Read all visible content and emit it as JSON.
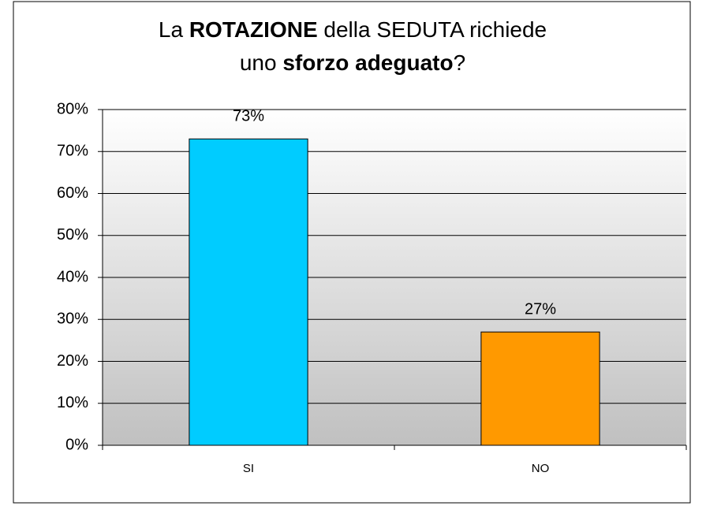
{
  "chart_data": {
    "type": "bar",
    "title": [
      [
        {
          "text": "La ",
          "bold": false
        },
        {
          "text": "ROTAZIONE",
          "bold": true
        },
        {
          "text": " della SEDUTA richiede",
          "bold": false
        }
      ],
      [
        {
          "text": "uno ",
          "bold": false
        },
        {
          "text": "sforzo adeguato",
          "bold": true
        },
        {
          "text": "?",
          "bold": false
        }
      ]
    ],
    "categories": [
      "SI",
      "NO"
    ],
    "values": [
      73,
      27
    ],
    "value_labels": [
      "73%",
      "27%"
    ],
    "colors": [
      "#00ccff",
      "#ff9900"
    ],
    "ylim": [
      0,
      80
    ],
    "yticks": [
      {
        "value": 0,
        "label": "0%"
      },
      {
        "value": 10,
        "label": "10%"
      },
      {
        "value": 20,
        "label": "20%"
      },
      {
        "value": 30,
        "label": "30%"
      },
      {
        "value": 40,
        "label": "40%"
      },
      {
        "value": 50,
        "label": "50%"
      },
      {
        "value": 60,
        "label": "60%"
      },
      {
        "value": 70,
        "label": "70%"
      },
      {
        "value": 80,
        "label": "80%"
      }
    ],
    "grid": true
  }
}
